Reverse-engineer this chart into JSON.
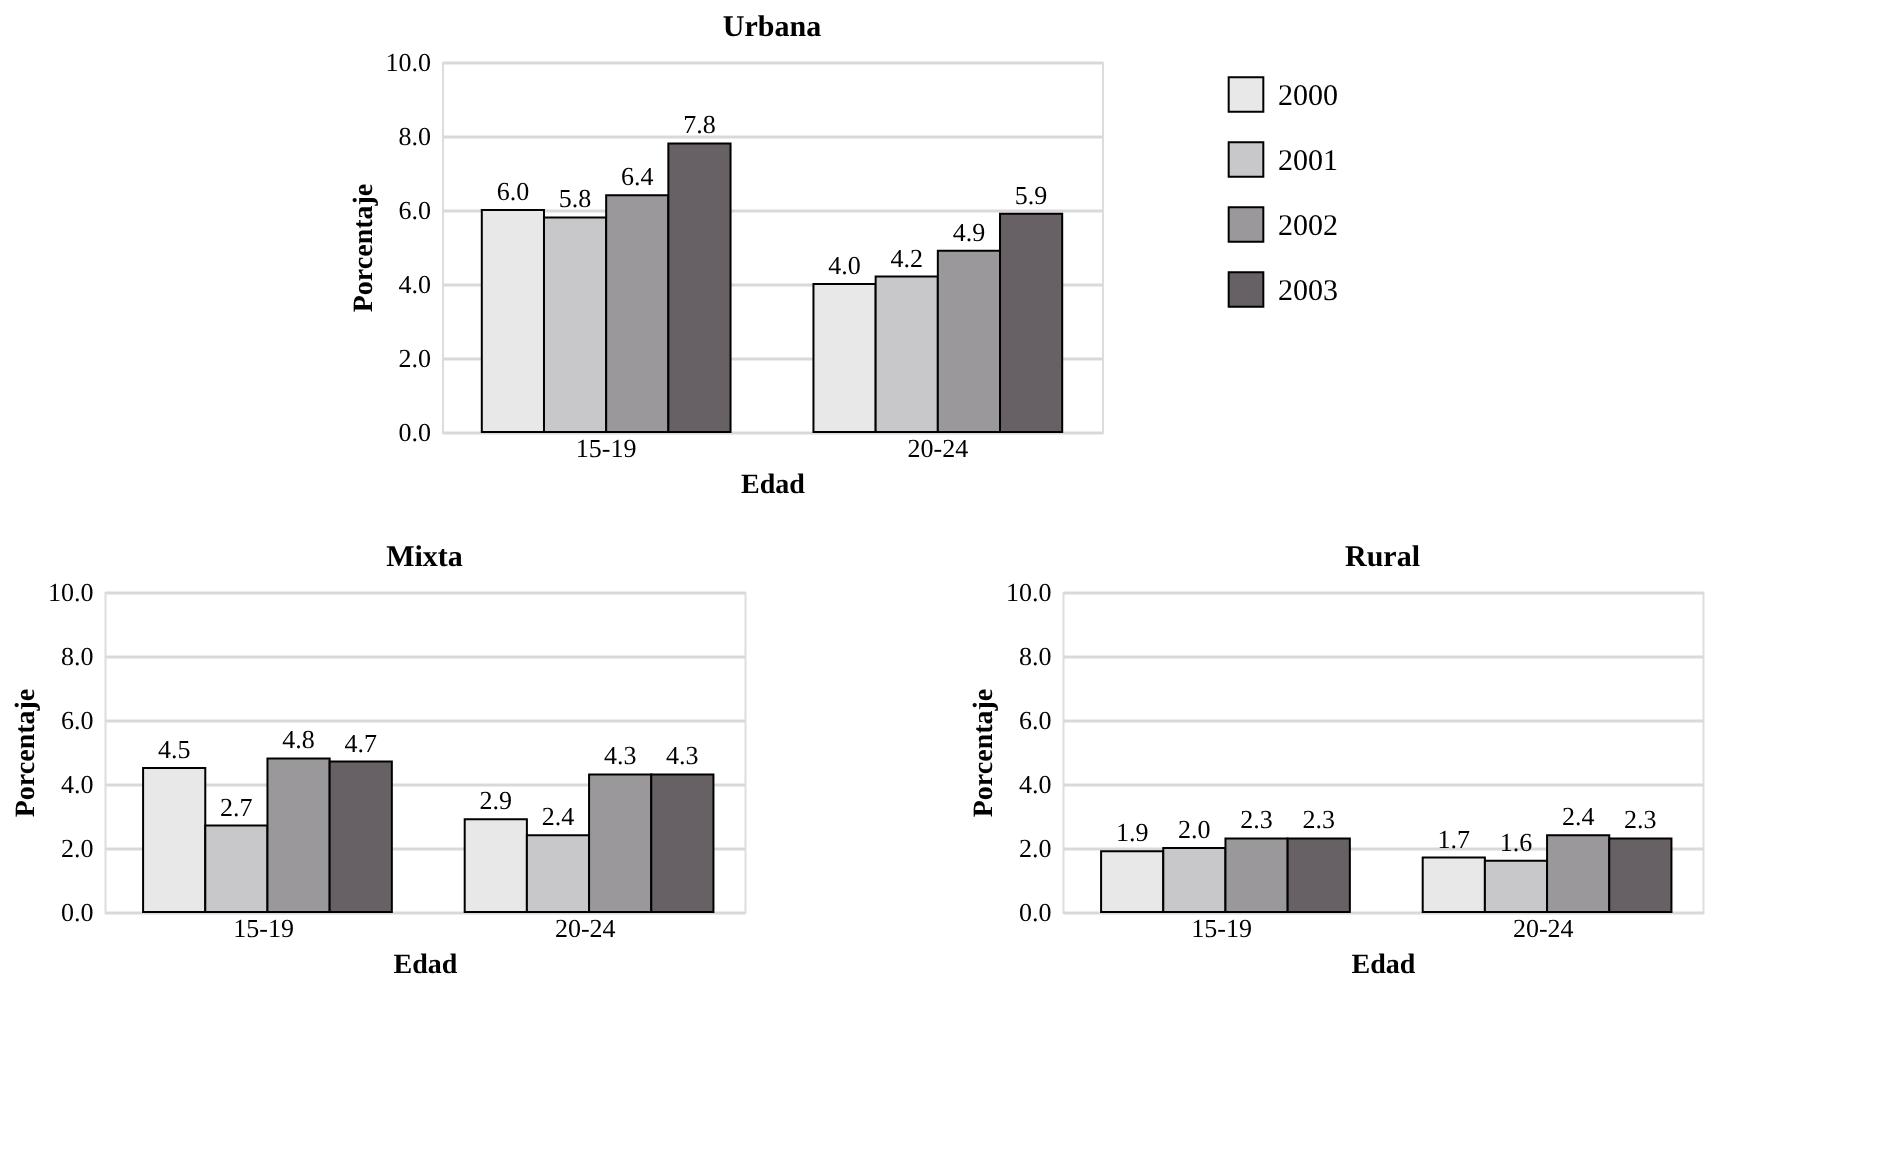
{
  "chart_data": [
    {
      "type": "bar",
      "title": "Urbana",
      "xlabel": "Edad",
      "ylabel": "Porcentaje",
      "categories": [
        "15-19",
        "20-24"
      ],
      "series": [
        {
          "name": "2000",
          "color": "#e8e8e8",
          "values": [
            6.0,
            4.0
          ],
          "value_labels": [
            "6.0",
            "4.0"
          ]
        },
        {
          "name": "2001",
          "color": "#c8c8ca",
          "values": [
            5.8,
            4.2
          ],
          "value_labels": [
            "5.8",
            "4.2"
          ]
        },
        {
          "name": "2002",
          "color": "#9a989b",
          "values": [
            6.4,
            4.9
          ],
          "value_labels": [
            "6.4",
            "4.9"
          ]
        },
        {
          "name": "2003",
          "color": "#676165",
          "values": [
            7.8,
            5.9
          ],
          "value_labels": [
            "7.8",
            "5.9"
          ]
        }
      ],
      "ylim": [
        0,
        10
      ],
      "yticks": [
        {
          "value": 0,
          "label": "0.0"
        },
        {
          "value": 2,
          "label": "2.0"
        },
        {
          "value": 4,
          "label": "4.0"
        },
        {
          "value": 6,
          "label": "6.0"
        },
        {
          "value": 8,
          "label": "8.0"
        },
        {
          "value": 10,
          "label": "10.0"
        }
      ],
      "grid": "y",
      "legend": "right"
    },
    {
      "type": "bar",
      "title": "Mixta",
      "xlabel": "Edad",
      "ylabel": "Porcentaje",
      "categories": [
        "15-19",
        "20-24"
      ],
      "series": [
        {
          "name": "2000",
          "color": "#e8e8e8",
          "values": [
            4.5,
            2.9
          ],
          "value_labels": [
            "4.5",
            "2.9"
          ]
        },
        {
          "name": "2001",
          "color": "#c8c8ca",
          "values": [
            2.7,
            2.4
          ],
          "value_labels": [
            "2.7",
            "2.4"
          ]
        },
        {
          "name": "2002",
          "color": "#9a989b",
          "values": [
            4.8,
            4.3
          ],
          "value_labels": [
            "4.8",
            "4.3"
          ]
        },
        {
          "name": "2003",
          "color": "#676165",
          "values": [
            4.7,
            4.3
          ],
          "value_labels": [
            "4.7",
            "4.3"
          ]
        }
      ],
      "ylim": [
        0,
        10
      ],
      "yticks": [
        {
          "value": 0,
          "label": "0.0"
        },
        {
          "value": 2,
          "label": "2.0"
        },
        {
          "value": 4,
          "label": "4.0"
        },
        {
          "value": 6,
          "label": "6.0"
        },
        {
          "value": 8,
          "label": "8.0"
        },
        {
          "value": 10,
          "label": "10.0"
        }
      ],
      "grid": "y"
    },
    {
      "type": "bar",
      "title": "Rural",
      "xlabel": "Edad",
      "ylabel": "Porcentaje",
      "categories": [
        "15-19",
        "20-24"
      ],
      "series": [
        {
          "name": "2000",
          "color": "#e8e8e8",
          "values": [
            1.9,
            1.7
          ],
          "value_labels": [
            "1.9",
            "1.7"
          ]
        },
        {
          "name": "2001",
          "color": "#c8c8ca",
          "values": [
            2.0,
            1.6
          ],
          "value_labels": [
            "2.0",
            "1.6"
          ]
        },
        {
          "name": "2002",
          "color": "#9a989b",
          "values": [
            2.3,
            2.4
          ],
          "value_labels": [
            "2.3",
            "2.4"
          ]
        },
        {
          "name": "2003",
          "color": "#676165",
          "values": [
            2.3,
            2.3
          ],
          "value_labels": [
            "2.3",
            "2.3"
          ]
        }
      ],
      "ylim": [
        0,
        10
      ],
      "yticks": [
        {
          "value": 0,
          "label": "0.0"
        },
        {
          "value": 2,
          "label": "2.0"
        },
        {
          "value": 4,
          "label": "4.0"
        },
        {
          "value": 6,
          "label": "6.0"
        },
        {
          "value": 8,
          "label": "8.0"
        },
        {
          "value": 10,
          "label": "10.0"
        }
      ],
      "grid": "y"
    }
  ]
}
